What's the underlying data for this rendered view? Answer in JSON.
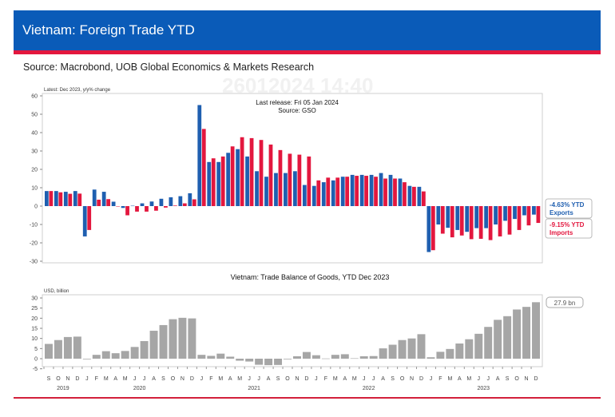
{
  "header": {
    "title": "Vietnam: Foreign Trade YTD",
    "source": "Source: Macrobond, UOB Global Economics & Markets Research",
    "watermark": "26012024 14:40"
  },
  "colors": {
    "banner": "#0a5bb8",
    "accent_red": "#e3173e",
    "exports": "#1f5fb0",
    "imports": "#e3173e",
    "balance": "#a6a6a6"
  },
  "chart_data": [
    {
      "type": "bar",
      "subtitle": "Latest: Dec 2023, y/y% change",
      "annotation": [
        "Last release: Fri 05 Jan 2024",
        "Source: GSO"
      ],
      "ylim": [
        -30,
        60
      ],
      "yticks": [
        -30,
        -20,
        -10,
        0,
        10,
        20,
        30,
        40,
        50,
        60
      ],
      "categories": [
        "Sep 2019",
        "Oct 2019",
        "Nov 2019",
        "Dec 2019",
        "Jan 2020",
        "Feb 2020",
        "Mar 2020",
        "Apr 2020",
        "May 2020",
        "Jun 2020",
        "Jul 2020",
        "Aug 2020",
        "Sep 2020",
        "Oct 2020",
        "Nov 2020",
        "Dec 2020",
        "Jan 2021",
        "Feb 2021",
        "Mar 2021",
        "Apr 2021",
        "May 2021",
        "Jun 2021",
        "Jul 2021",
        "Aug 2021",
        "Sep 2021",
        "Oct 2021",
        "Nov 2021",
        "Dec 2021",
        "Jan 2022",
        "Feb 2022",
        "Mar 2022",
        "Apr 2022",
        "May 2022",
        "Jun 2022",
        "Jul 2022",
        "Aug 2022",
        "Sep 2022",
        "Oct 2022",
        "Nov 2022",
        "Dec 2022",
        "Jan 2023",
        "Feb 2023",
        "Mar 2023",
        "Apr 2023",
        "May 2023",
        "Jun 2023",
        "Jul 2023",
        "Aug 2023",
        "Sep 2023",
        "Oct 2023",
        "Nov 2023",
        "Dec 2023"
      ],
      "series": [
        {
          "name": "Exports",
          "label": [
            "-4.63% YTD",
            "Exports"
          ],
          "values": [
            8.2,
            8.2,
            7.8,
            8.2,
            -16.5,
            9.0,
            7.8,
            2.4,
            -1.0,
            0.2,
            1.5,
            2.5,
            4.0,
            4.8,
            5.4,
            7.0,
            55.0,
            24.0,
            24.0,
            29.0,
            31.0,
            27.0,
            19.0,
            16.0,
            18.0,
            18.0,
            19.0,
            11.5,
            11.0,
            13.0,
            14.0,
            16.0,
            17.0,
            17.0,
            17.0,
            18.0,
            17.0,
            15.0,
            11.0,
            10.5,
            -25.0,
            -10.0,
            -11.8,
            -13.0,
            -14.0,
            -12.0,
            -12.0,
            -10.0,
            -8.0,
            -7.0,
            -5.0,
            -4.63
          ]
        },
        {
          "name": "Imports",
          "label": [
            "-9.15% YTD",
            "Imports"
          ],
          "values": [
            8.2,
            7.5,
            6.7,
            6.8,
            -13.0,
            3.5,
            3.8,
            0.0,
            -5.0,
            -3.0,
            -3.0,
            -2.5,
            -0.8,
            0.3,
            1.5,
            3.7,
            42.0,
            26.0,
            27.0,
            32.5,
            37.5,
            37.0,
            36.0,
            33.5,
            30.5,
            28.5,
            28.0,
            27.0,
            14.0,
            15.5,
            15.5,
            16.0,
            16.5,
            16.5,
            16.0,
            15.0,
            15.0,
            13.0,
            10.5,
            8.0,
            -24.0,
            -15.0,
            -17.0,
            -16.0,
            -18.0,
            -17.8,
            -18.5,
            -16.5,
            -15.5,
            -13.0,
            -10.5,
            -9.15
          ]
        }
      ]
    },
    {
      "type": "bar",
      "title": "Vietnam: Trade Balance of Goods, YTD Dec 2023",
      "ylabel": "USD, billion",
      "ylim": [
        -5,
        30
      ],
      "yticks": [
        -5,
        0,
        5,
        10,
        15,
        20,
        25,
        30
      ],
      "latest_label": "27.9 bn",
      "month_labels": [
        "S",
        "O",
        "N",
        "D",
        "J",
        "F",
        "M",
        "A",
        "M",
        "J",
        "J",
        "A",
        "S",
        "O",
        "N",
        "D",
        "J",
        "F",
        "M",
        "A",
        "M",
        "J",
        "J",
        "A",
        "S",
        "O",
        "N",
        "D",
        "J",
        "F",
        "M",
        "A",
        "M",
        "J",
        "J",
        "A",
        "S",
        "O",
        "N",
        "D",
        "J",
        "F",
        "M",
        "A",
        "M",
        "J",
        "J",
        "A",
        "S",
        "O",
        "N",
        "D"
      ],
      "year_labels": [
        {
          "label": "2019",
          "index": 1.5
        },
        {
          "label": "2020",
          "index": 9.5
        },
        {
          "label": "2021",
          "index": 21.5
        },
        {
          "label": "2022",
          "index": 33.5
        },
        {
          "label": "2023",
          "index": 45.5
        }
      ],
      "values": [
        7.3,
        9.2,
        10.7,
        10.9,
        -0.3,
        1.9,
        3.7,
        2.7,
        3.8,
        5.8,
        8.7,
        13.8,
        16.6,
        19.5,
        20.2,
        19.9,
        1.9,
        1.4,
        2.5,
        1.0,
        -1.0,
        -1.4,
        -3.0,
        -3.2,
        -3.1,
        -0.3,
        1.2,
        3.3,
        1.7,
        0.1,
        1.9,
        2.2,
        0.2,
        1.2,
        1.3,
        5.1,
        6.9,
        9.2,
        10.0,
        12.1,
        0.7,
        3.4,
        4.8,
        7.5,
        9.6,
        12.3,
        15.7,
        19.2,
        21.0,
        24.3,
        25.6,
        27.9
      ]
    }
  ]
}
